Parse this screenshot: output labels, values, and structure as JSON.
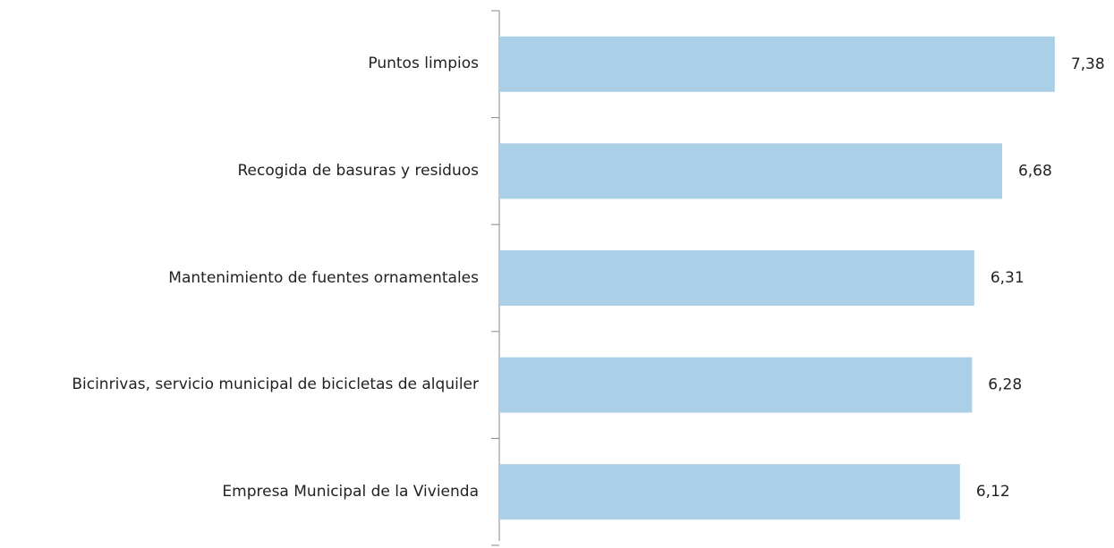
{
  "chart_data": {
    "type": "bar",
    "orientation": "horizontal",
    "categories": [
      "Puntos limpios",
      "Recogida de basuras y residuos",
      "Mantenimiento de fuentes ornamentales",
      "Bicinrivas, servicio municipal de bicicletas de alquiler",
      "Empresa Municipal de la Vivienda"
    ],
    "values": [
      7.38,
      6.68,
      6.31,
      6.28,
      6.12
    ],
    "value_labels": [
      "7,38",
      "6,68",
      "6,31",
      "6,28",
      "6,12"
    ],
    "color": "#abcfe6",
    "xlim": [
      0,
      8
    ]
  }
}
